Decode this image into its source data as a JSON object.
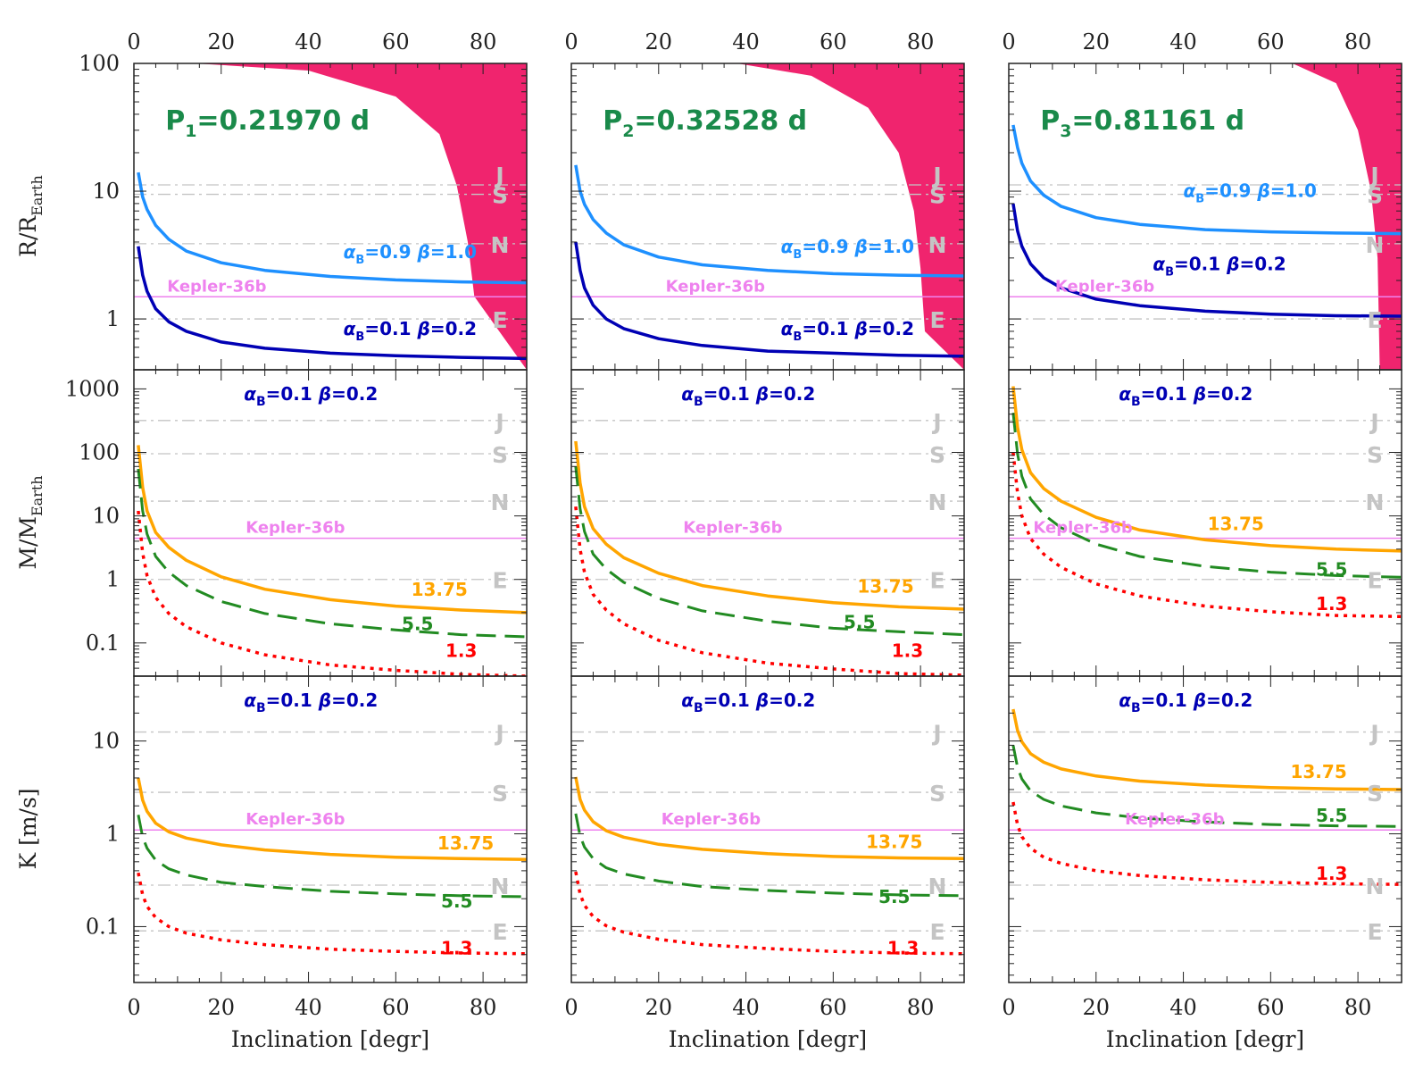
{
  "colors": {
    "forbidden": "#f0246e",
    "light_blue": "#1e90ff",
    "dark_blue": "#0000b4",
    "orange": "#ffa500",
    "green": "#228b22",
    "red": "#ff0000",
    "kepler": "#ee82ee",
    "reference": "#c4c4c4",
    "period_text": "#1a8a4a"
  },
  "xlabel": "Inclination [degr]",
  "ylabels": {
    "R": {
      "main": "R/R",
      "sub": "Earth"
    },
    "M": {
      "main": "M/M",
      "sub": "Earth"
    },
    "K": {
      "main": "K [m/s]",
      "sub": ""
    }
  },
  "x_ticks": [
    "0",
    "20",
    "40",
    "60",
    "80"
  ],
  "y_ticks": {
    "R": [
      "100",
      "10",
      "1"
    ],
    "M": [
      "1000",
      "100",
      "10",
      "1",
      "0.1"
    ],
    "K": [
      "10",
      "1",
      "0.1"
    ]
  },
  "kepler_label": "Kepler-36b",
  "planet_letters": [
    "J",
    "S",
    "N",
    "E"
  ],
  "legend_labels": {
    "hi": "α_B=0.9  β=1.0",
    "lo": "α_B=0.1  β=0.2",
    "q1": "13.75",
    "q2": "5.5",
    "q3": "1.3"
  },
  "chart_data": [
    {
      "type": "line",
      "panel": "P1 radius",
      "title": "P1=0.21970 d",
      "period_main": "P",
      "period_sub": "1",
      "period_rest": "=0.21970 d",
      "xlabel": "",
      "ylabel": "R/R_Earth",
      "xlim": [
        0,
        90
      ],
      "ylim": [
        0.4,
        100
      ],
      "yscale": "log",
      "forbidden_region": {
        "x": [
          14,
          40,
          60,
          70,
          74,
          76.5,
          78,
          90
        ],
        "y_lower": [
          100,
          88,
          55,
          28,
          11,
          4,
          1.5,
          0.4
        ]
      },
      "reference_lines": {
        "J": 11.2,
        "S": 9.45,
        "N": 3.88,
        "E": 1.0
      },
      "kepler_36b": 1.49,
      "series": [
        {
          "name": "α_B=0.9 β=1.0",
          "x": [
            1,
            2,
            3,
            5,
            8,
            12,
            20,
            30,
            45,
            60,
            75,
            90
          ],
          "y": [
            14,
            9,
            7.2,
            5.4,
            4.2,
            3.4,
            2.75,
            2.4,
            2.15,
            2.02,
            1.95,
            1.92
          ]
        },
        {
          "name": "α_B=0.1 β=0.2",
          "x": [
            1,
            2,
            3,
            5,
            8,
            12,
            20,
            30,
            45,
            60,
            75,
            90
          ],
          "y": [
            3.7,
            2.2,
            1.65,
            1.2,
            0.95,
            0.8,
            0.66,
            0.59,
            0.54,
            0.515,
            0.5,
            0.49
          ]
        }
      ]
    },
    {
      "type": "line",
      "panel": "P2 radius",
      "title": "P2=0.32528 d",
      "period_main": "P",
      "period_sub": "2",
      "period_rest": "=0.32528 d",
      "xlabel": "",
      "ylabel": "",
      "xlim": [
        0,
        90
      ],
      "ylim": [
        0.4,
        100
      ],
      "yscale": "log",
      "forbidden_region": {
        "x": [
          38,
          55,
          68,
          75,
          78.5,
          80,
          81,
          90
        ],
        "y_lower": [
          100,
          80,
          45,
          20,
          7,
          2.5,
          0.8,
          0.4
        ]
      },
      "reference_lines": {
        "J": 11.2,
        "S": 9.45,
        "N": 3.88,
        "E": 1.0
      },
      "kepler_36b": 1.49,
      "series": [
        {
          "name": "α_B=0.9 β=1.0",
          "x": [
            1,
            2,
            3,
            5,
            8,
            12,
            20,
            30,
            45,
            60,
            75,
            90
          ],
          "y": [
            16,
            10,
            7.9,
            6,
            4.7,
            3.8,
            3.05,
            2.65,
            2.4,
            2.26,
            2.2,
            2.17
          ]
        },
        {
          "name": "α_B=0.1 β=0.2",
          "x": [
            1,
            2,
            3,
            5,
            8,
            12,
            20,
            30,
            45,
            60,
            75,
            90
          ],
          "y": [
            4.0,
            2.4,
            1.75,
            1.28,
            1.0,
            0.84,
            0.7,
            0.62,
            0.56,
            0.54,
            0.52,
            0.51
          ]
        }
      ]
    },
    {
      "type": "line",
      "panel": "P3 radius",
      "title": "P3=0.81161 d",
      "period_main": "P",
      "period_sub": "3",
      "period_rest": "=0.81161 d",
      "xlabel": "",
      "ylabel": "",
      "xlim": [
        0,
        90
      ],
      "ylim": [
        0.4,
        100
      ],
      "yscale": "log",
      "forbidden_region": {
        "x": [
          65,
          75,
          80,
          83,
          84.5,
          85,
          90
        ],
        "y_lower": [
          100,
          70,
          30,
          10,
          3,
          0.4,
          0.4
        ]
      },
      "reference_lines": {
        "J": 11.2,
        "S": 9.45,
        "N": 3.88,
        "E": 1.0
      },
      "kepler_36b": 1.49,
      "series": [
        {
          "name": "α_B=0.9 β=1.0",
          "x": [
            1,
            2,
            3,
            5,
            8,
            12,
            20,
            30,
            45,
            60,
            75,
            90
          ],
          "y": [
            33,
            22,
            16.5,
            12,
            9.3,
            7.6,
            6.2,
            5.5,
            5.0,
            4.8,
            4.7,
            4.65
          ]
        },
        {
          "name": "α_B=0.1 β=0.2",
          "x": [
            1,
            2,
            3,
            5,
            8,
            12,
            20,
            30,
            45,
            60,
            75,
            90
          ],
          "y": [
            8,
            4.9,
            3.7,
            2.7,
            2.1,
            1.75,
            1.43,
            1.27,
            1.15,
            1.09,
            1.06,
            1.05
          ]
        }
      ]
    },
    {
      "type": "line",
      "panel": "P1 mass",
      "title": "α_B=0.1 β=0.2",
      "xlabel": "",
      "ylabel": "M/M_Earth",
      "xlim": [
        0,
        90
      ],
      "ylim": [
        0.03,
        2000
      ],
      "yscale": "log",
      "reference_lines": {
        "J": 317.8,
        "S": 95.2,
        "N": 17.1,
        "E": 1.0
      },
      "kepler_36b": 4.45,
      "series": [
        {
          "name": "13.75",
          "x": [
            1,
            2,
            3,
            5,
            8,
            12,
            20,
            30,
            45,
            60,
            75,
            90
          ],
          "y": [
            130,
            28,
            12,
            5.5,
            3.2,
            2.0,
            1.1,
            0.7,
            0.48,
            0.38,
            0.33,
            0.3
          ]
        },
        {
          "name": "5.5",
          "x": [
            1,
            2,
            3,
            5,
            8,
            12,
            20,
            30,
            45,
            60,
            75,
            90
          ],
          "y": [
            55,
            12,
            5.2,
            2.3,
            1.3,
            0.8,
            0.45,
            0.29,
            0.2,
            0.16,
            0.135,
            0.125
          ]
        },
        {
          "name": "1.3",
          "x": [
            1,
            2,
            3,
            5,
            8,
            12,
            20,
            30,
            45,
            60,
            75,
            90
          ],
          "y": [
            12,
            2.6,
            1.15,
            0.52,
            0.29,
            0.18,
            0.1,
            0.065,
            0.045,
            0.037,
            0.032,
            0.03
          ]
        }
      ]
    },
    {
      "type": "line",
      "panel": "P2 mass",
      "title": "α_B=0.1 β=0.2",
      "xlabel": "",
      "ylabel": "",
      "xlim": [
        0,
        90
      ],
      "ylim": [
        0.03,
        2000
      ],
      "yscale": "log",
      "reference_lines": {
        "J": 317.8,
        "S": 95.2,
        "N": 17.1,
        "E": 1.0
      },
      "kepler_36b": 4.45,
      "series": [
        {
          "name": "13.75",
          "x": [
            1,
            2,
            3,
            5,
            8,
            12,
            20,
            30,
            45,
            60,
            75,
            90
          ],
          "y": [
            150,
            33,
            14,
            6.3,
            3.6,
            2.2,
            1.25,
            0.8,
            0.55,
            0.43,
            0.37,
            0.34
          ]
        },
        {
          "name": "5.5",
          "x": [
            1,
            2,
            3,
            5,
            8,
            12,
            20,
            30,
            45,
            60,
            75,
            90
          ],
          "y": [
            60,
            13,
            5.7,
            2.5,
            1.45,
            0.9,
            0.5,
            0.32,
            0.22,
            0.17,
            0.15,
            0.135
          ]
        },
        {
          "name": "1.3",
          "x": [
            1,
            2,
            3,
            5,
            8,
            12,
            20,
            30,
            45,
            60,
            75,
            90
          ],
          "y": [
            14,
            3.0,
            1.3,
            0.58,
            0.33,
            0.2,
            0.11,
            0.07,
            0.048,
            0.039,
            0.033,
            0.031
          ]
        }
      ]
    },
    {
      "type": "line",
      "panel": "P3 mass",
      "title": "α_B=0.1 β=0.2",
      "xlabel": "",
      "ylabel": "",
      "xlim": [
        0,
        90
      ],
      "ylim": [
        0.03,
        2000
      ],
      "yscale": "log",
      "reference_lines": {
        "J": 317.8,
        "S": 95.2,
        "N": 17.1,
        "E": 1.0
      },
      "kepler_36b": 4.45,
      "series": [
        {
          "name": "13.75",
          "x": [
            1,
            2,
            3,
            5,
            8,
            12,
            20,
            30,
            45,
            60,
            75,
            90
          ],
          "y": [
            1100,
            250,
            110,
            48,
            27,
            17,
            9.5,
            6.0,
            4.2,
            3.4,
            3.0,
            2.8
          ]
        },
        {
          "name": "5.5",
          "x": [
            1,
            2,
            3,
            5,
            8,
            12,
            20,
            30,
            45,
            60,
            75,
            90
          ],
          "y": [
            420,
            95,
            42,
            18.5,
            10.5,
            6.5,
            3.6,
            2.3,
            1.6,
            1.3,
            1.15,
            1.08
          ]
        },
        {
          "name": "1.3",
          "x": [
            1,
            2,
            3,
            5,
            8,
            12,
            20,
            30,
            45,
            60,
            75,
            90
          ],
          "y": [
            100,
            23,
            10,
            4.4,
            2.5,
            1.55,
            0.85,
            0.55,
            0.38,
            0.31,
            0.27,
            0.26
          ]
        }
      ]
    },
    {
      "type": "line",
      "panel": "P1 RV amplitude",
      "title": "α_B=0.1 β=0.2",
      "xlabel": "Inclination [degr]",
      "ylabel": "K [m/s]",
      "xlim": [
        0,
        90
      ],
      "ylim": [
        0.025,
        50
      ],
      "yscale": "log",
      "reference_lines": {
        "J": 12.5,
        "S": 2.8,
        "N": 0.28,
        "E": 0.09
      },
      "kepler_36b": 1.1,
      "series": [
        {
          "name": "13.75",
          "x": [
            1,
            2,
            3,
            5,
            8,
            12,
            20,
            30,
            45,
            60,
            75,
            90
          ],
          "y": [
            4.0,
            2.3,
            1.75,
            1.3,
            1.05,
            0.9,
            0.76,
            0.67,
            0.6,
            0.56,
            0.54,
            0.53
          ]
        },
        {
          "name": "5.5",
          "x": [
            1,
            2,
            3,
            5,
            8,
            12,
            20,
            30,
            45,
            60,
            75,
            90
          ],
          "y": [
            1.6,
            0.92,
            0.7,
            0.52,
            0.42,
            0.36,
            0.3,
            0.27,
            0.24,
            0.225,
            0.215,
            0.21
          ]
        },
        {
          "name": "1.3",
          "x": [
            1,
            2,
            3,
            5,
            8,
            12,
            20,
            30,
            45,
            60,
            75,
            90
          ],
          "y": [
            0.38,
            0.22,
            0.165,
            0.125,
            0.1,
            0.085,
            0.072,
            0.064,
            0.057,
            0.054,
            0.052,
            0.051
          ]
        }
      ]
    },
    {
      "type": "line",
      "panel": "P2 RV amplitude",
      "title": "α_B=0.1 β=0.2",
      "xlabel": "Inclination [degr]",
      "ylabel": "",
      "xlim": [
        0,
        90
      ],
      "ylim": [
        0.025,
        50
      ],
      "yscale": "log",
      "reference_lines": {
        "J": 12.5,
        "S": 2.8,
        "N": 0.28,
        "E": 0.09
      },
      "kepler_36b": 1.1,
      "series": [
        {
          "name": "13.75",
          "x": [
            1,
            2,
            3,
            5,
            8,
            12,
            20,
            30,
            45,
            60,
            75,
            90
          ],
          "y": [
            4.1,
            2.35,
            1.8,
            1.35,
            1.08,
            0.92,
            0.77,
            0.68,
            0.61,
            0.57,
            0.55,
            0.54
          ]
        },
        {
          "name": "5.5",
          "x": [
            1,
            2,
            3,
            5,
            8,
            12,
            20,
            30,
            45,
            60,
            75,
            90
          ],
          "y": [
            1.65,
            0.95,
            0.72,
            0.54,
            0.43,
            0.37,
            0.31,
            0.27,
            0.245,
            0.23,
            0.22,
            0.215
          ]
        },
        {
          "name": "1.3",
          "x": [
            1,
            2,
            3,
            5,
            8,
            12,
            20,
            30,
            45,
            60,
            75,
            90
          ],
          "y": [
            0.39,
            0.225,
            0.17,
            0.128,
            0.102,
            0.087,
            0.073,
            0.064,
            0.058,
            0.054,
            0.052,
            0.051
          ]
        }
      ]
    },
    {
      "type": "line",
      "panel": "P3 RV amplitude",
      "title": "α_B=0.1 β=0.2",
      "xlabel": "Inclination [degr]",
      "ylabel": "",
      "xlim": [
        0,
        90
      ],
      "ylim": [
        0.025,
        50
      ],
      "yscale": "log",
      "reference_lines": {
        "J": 12.5,
        "S": 2.8,
        "N": 0.28,
        "E": 0.09
      },
      "kepler_36b": 1.1,
      "series": [
        {
          "name": "13.75",
          "x": [
            1,
            2,
            3,
            5,
            8,
            12,
            20,
            30,
            45,
            60,
            75,
            90
          ],
          "y": [
            22,
            13,
            9.8,
            7.3,
            5.9,
            5.0,
            4.2,
            3.7,
            3.35,
            3.15,
            3.05,
            3.0
          ]
        },
        {
          "name": "5.5",
          "x": [
            1,
            2,
            3,
            5,
            8,
            12,
            20,
            30,
            45,
            60,
            75,
            90
          ],
          "y": [
            9,
            5.2,
            3.9,
            2.9,
            2.35,
            2.0,
            1.68,
            1.48,
            1.34,
            1.26,
            1.22,
            1.2
          ]
        },
        {
          "name": "1.3",
          "x": [
            1,
            2,
            3,
            5,
            8,
            12,
            20,
            30,
            45,
            60,
            75,
            90
          ],
          "y": [
            2.2,
            1.25,
            0.93,
            0.7,
            0.56,
            0.48,
            0.4,
            0.355,
            0.32,
            0.3,
            0.29,
            0.285
          ]
        }
      ]
    }
  ]
}
